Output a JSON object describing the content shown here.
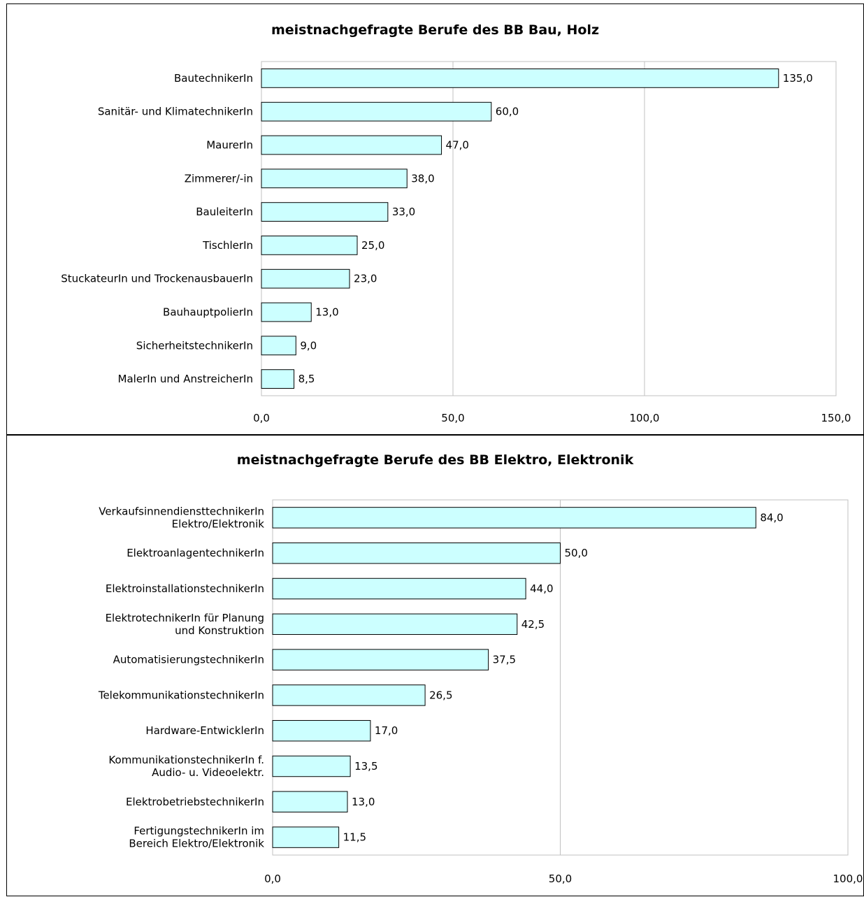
{
  "chart_data": [
    {
      "type": "bar",
      "orientation": "horizontal",
      "title": "meistnachgefragte Berufe des BB Bau, Holz",
      "categories": [
        "BautechnikerIn",
        "Sanitär- und KlimatechnikerIn",
        "MaurerIn",
        "Zimmerer/-in",
        "BauleiterIn",
        "TischlerIn",
        "StuckateurIn und TrockenausbauerIn",
        "BauhauptpolierIn",
        "SicherheitstechnikerIn",
        "MalerIn und AnstreicherIn"
      ],
      "values": [
        135.0,
        60.0,
        47.0,
        38.0,
        33.0,
        25.0,
        23.0,
        13.0,
        9.0,
        8.5
      ],
      "value_labels": [
        "135,0",
        "60,0",
        "47,0",
        "38,0",
        "33,0",
        "25,0",
        "23,0",
        "13,0",
        "9,0",
        "8,5"
      ],
      "xlim": [
        0,
        150
      ],
      "xticks": [
        0,
        50,
        100,
        150
      ],
      "xtick_labels": [
        "0,0",
        "50,0",
        "100,0",
        "150,0"
      ],
      "grid": "vertical",
      "bar_color": "#ccffff",
      "legend": "none"
    },
    {
      "type": "bar",
      "orientation": "horizontal",
      "title": "meistnachgefragte Berufe des BB Elektro, Elektronik",
      "categories": [
        "VerkaufsinnendiensttechnikerIn Elektro/Elektronik",
        "ElektroanlagentechnikerIn",
        "ElektroinstallationstechnikerIn",
        "ElektrotechnikerIn für Planung und Konstruktion",
        "AutomatisierungstechnikerIn",
        "TelekommunikationstechnikerIn",
        "Hardware-EntwicklerIn",
        "KommunikationstechnikerIn f. Audio- u. Videoelektr.",
        "ElektrobetriebstechnikerIn",
        "FertigungstechnikerIn im Bereich Elektro/Elektronik"
      ],
      "category_lines": [
        [
          "VerkaufsinnendiensttechnikerIn",
          "Elektro/Elektronik"
        ],
        [
          "ElektroanlagentechnikerIn"
        ],
        [
          "ElektroinstallationstechnikerIn"
        ],
        [
          "ElektrotechnikerIn für Planung",
          "und Konstruktion"
        ],
        [
          "AutomatisierungstechnikerIn"
        ],
        [
          "TelekommunikationstechnikerIn"
        ],
        [
          "Hardware-EntwicklerIn"
        ],
        [
          "KommunikationstechnikerIn f.",
          "Audio- u. Videoelektr."
        ],
        [
          "ElektrobetriebstechnikerIn"
        ],
        [
          "FertigungstechnikerIn im",
          "Bereich Elektro/Elektronik"
        ]
      ],
      "values": [
        84.0,
        50.0,
        44.0,
        42.5,
        37.5,
        26.5,
        17.0,
        13.5,
        13.0,
        11.5
      ],
      "value_labels": [
        "84,0",
        "50,0",
        "44,0",
        "42,5",
        "37,5",
        "26,5",
        "17,0",
        "13,5",
        "13,0",
        "11,5"
      ],
      "xlim": [
        0,
        100
      ],
      "xticks": [
        0,
        50,
        100
      ],
      "xtick_labels": [
        "0,0",
        "50,0",
        "100,0"
      ],
      "grid": "vertical",
      "bar_color": "#ccffff",
      "legend": "none"
    }
  ]
}
